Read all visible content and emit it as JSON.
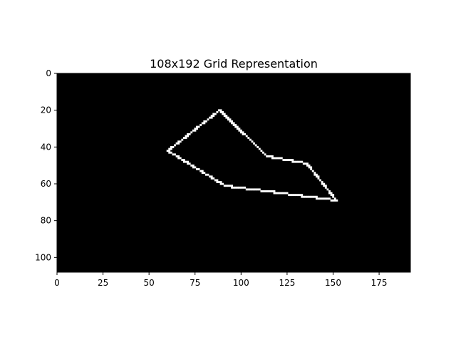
{
  "chart_data": {
    "type": "heatmap",
    "title": "108x192 Grid Representation",
    "xlabel": "",
    "ylabel": "",
    "xlim": [
      0,
      192
    ],
    "ylim": [
      108,
      0
    ],
    "x_ticks": [
      0,
      25,
      50,
      75,
      100,
      125,
      150,
      175
    ],
    "y_ticks": [
      0,
      20,
      40,
      60,
      80,
      100
    ],
    "background_color": "#000000",
    "line_color": "#ffffff",
    "outline_vertices": [
      {
        "x": 88,
        "y": 20
      },
      {
        "x": 114,
        "y": 45
      },
      {
        "x": 136,
        "y": 49
      },
      {
        "x": 152,
        "y": 69
      },
      {
        "x": 91,
        "y": 61
      },
      {
        "x": 60,
        "y": 42
      }
    ]
  }
}
